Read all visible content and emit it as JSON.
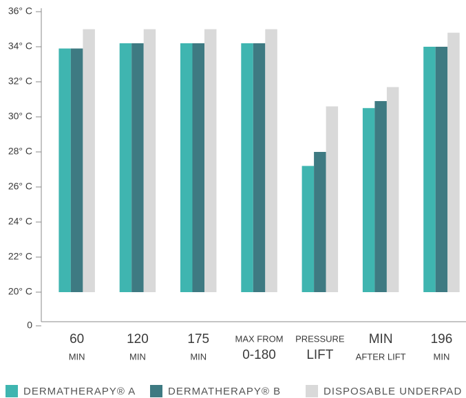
{
  "chart_data": {
    "type": "bar",
    "categories": [
      [
        "60",
        "MIN"
      ],
      [
        "120",
        "MIN"
      ],
      [
        "175",
        "MIN"
      ],
      [
        "MAX FROM",
        "0-180"
      ],
      [
        "PRESSURE",
        "LIFT"
      ],
      [
        "MIN",
        "AFTER LIFT"
      ],
      [
        "196",
        "MIN"
      ]
    ],
    "series": [
      {
        "name": "DERMATHERAPY® A",
        "color": "#3fb5b0",
        "values": [
          33.9,
          34.2,
          34.2,
          34.2,
          27.2,
          30.5,
          34.0
        ]
      },
      {
        "name": "DERMATHERAPY® B",
        "color": "#3e7a82",
        "values": [
          33.9,
          34.2,
          34.2,
          34.2,
          28.0,
          30.9,
          34.0
        ]
      },
      {
        "name": "DISPOSABLE UNDERPAD",
        "color": "#d9d9d9",
        "values": [
          35.0,
          35.0,
          35.0,
          35.0,
          30.6,
          31.7,
          34.8
        ]
      }
    ],
    "ylim": [
      0,
      36
    ],
    "yticks": [
      0,
      {
        "value": 20,
        "label": "20° C"
      },
      {
        "value": 22,
        "label": "22° C"
      },
      {
        "value": 24,
        "label": "24° C"
      },
      {
        "value": 26,
        "label": "26° C"
      },
      {
        "value": 28,
        "label": "28° C"
      },
      {
        "value": 30,
        "label": "30° C"
      },
      {
        "value": 32,
        "label": "32° C"
      },
      {
        "value": 34,
        "label": "34° C"
      },
      {
        "value": 36,
        "label": "36° C"
      }
    ],
    "axis_break": true,
    "grid": false,
    "legend": "bottom"
  }
}
